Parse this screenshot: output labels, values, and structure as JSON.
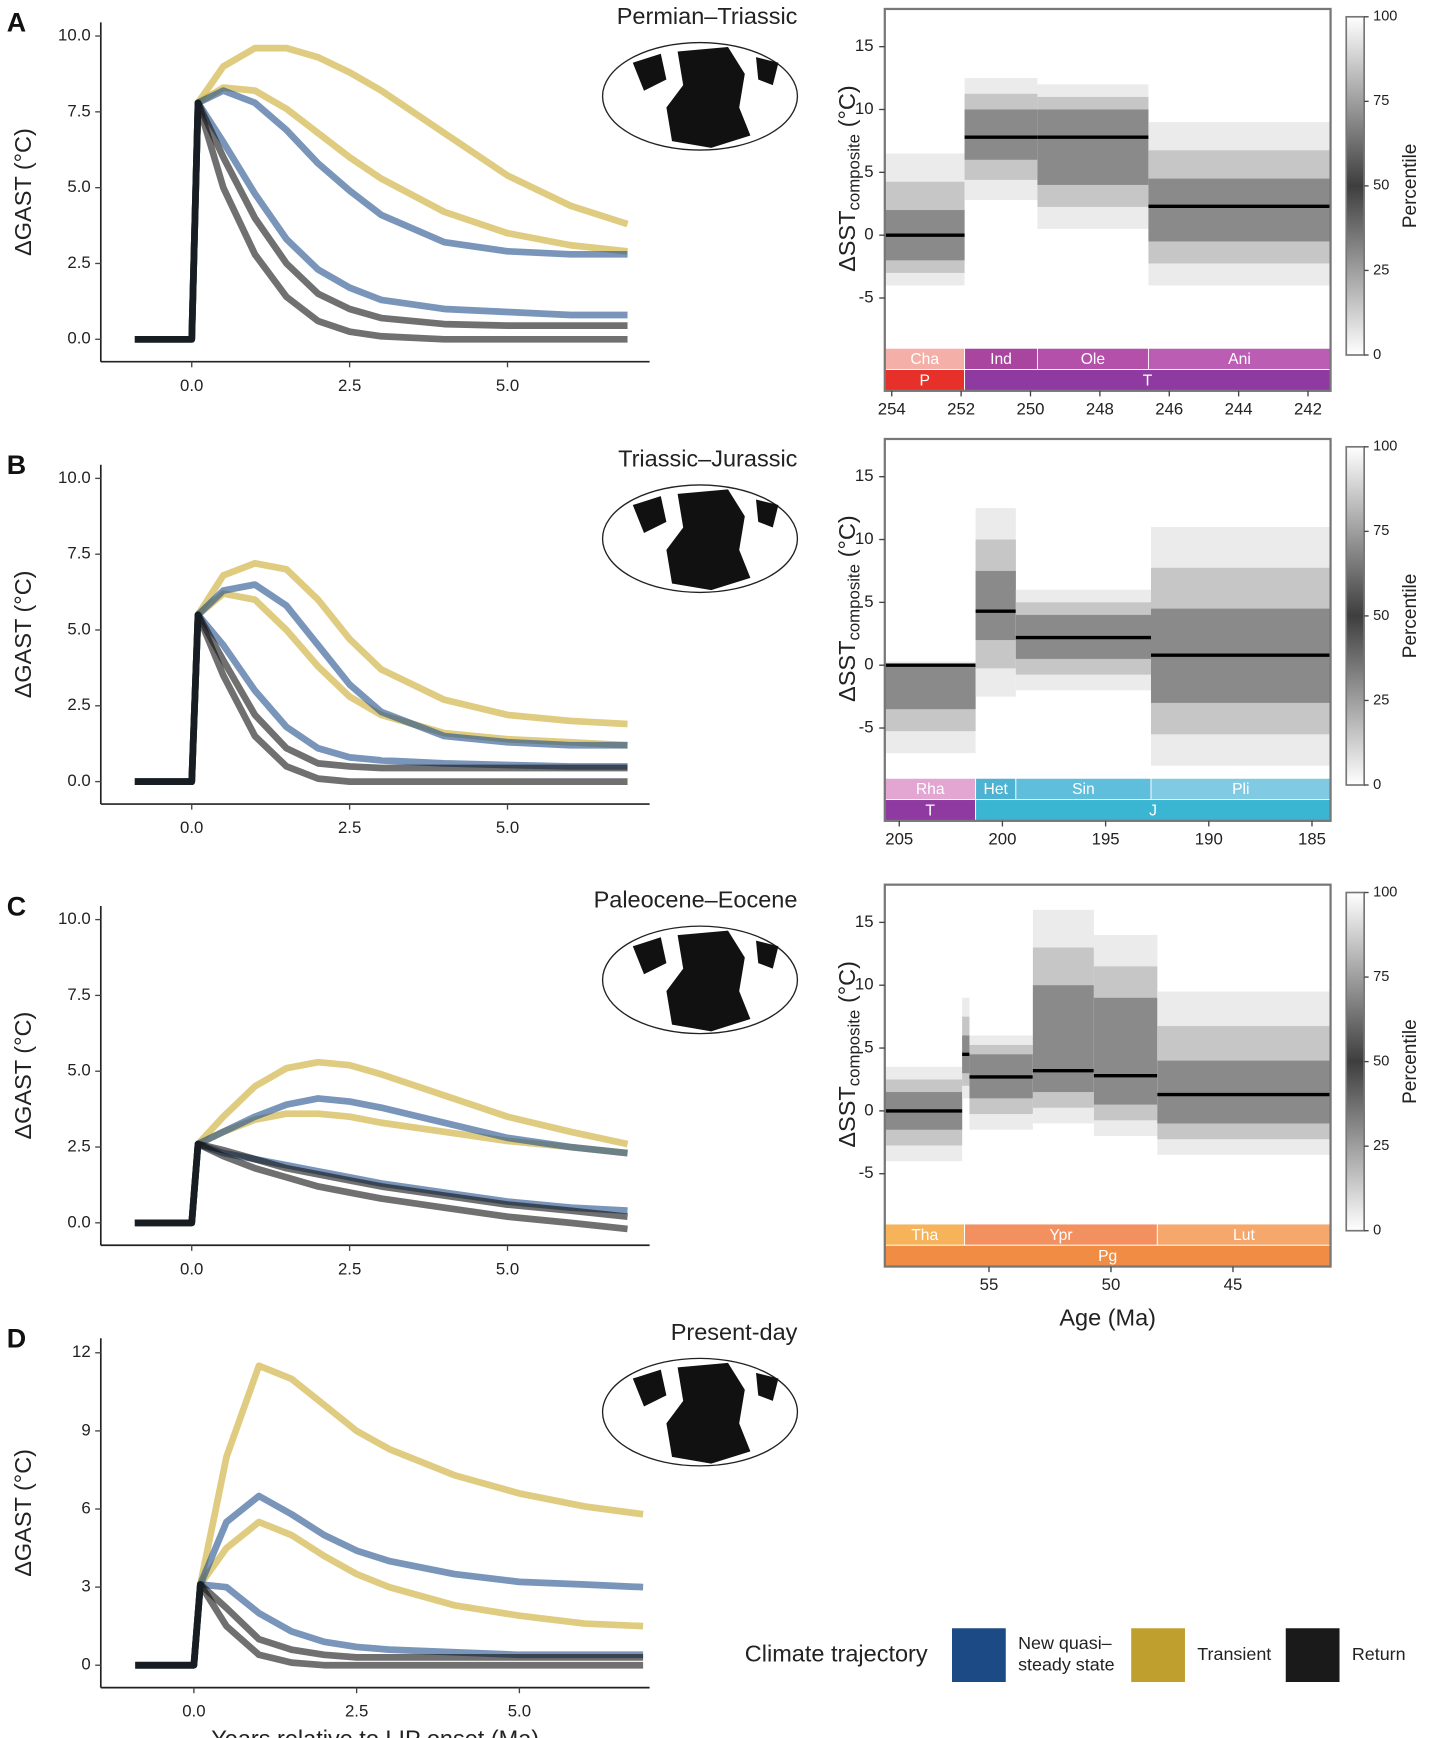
{
  "chart_data": [
    {
      "type": "line",
      "panel": "A",
      "title": "Permian–Triassic",
      "ylabel": "ΔGAST (°C)",
      "x": [
        -0.9,
        0,
        0.1,
        0.5,
        1,
        1.5,
        2,
        2.5,
        3,
        4,
        5,
        6,
        6.9
      ],
      "xlim": [
        -1.44,
        7.25
      ],
      "ylim": [
        -0.74,
        10.45
      ],
      "xticks": [
        {
          "value": 0,
          "label": "0.0"
        },
        2.5,
        {
          "value": 5,
          "label": "5.0"
        }
      ],
      "yticks": [
        {
          "value": 0,
          "label": "0.0"
        },
        2.5,
        {
          "value": 5,
          "label": "5.0"
        },
        7.5,
        {
          "value": 10,
          "label": "10.0"
        }
      ],
      "series": [
        {
          "color": "#c9aa2c",
          "values": [
            0,
            0,
            7.8,
            9,
            9.6,
            9.6,
            9.3,
            8.8,
            8.2,
            6.8,
            5.4,
            4.4,
            3.8
          ]
        },
        {
          "color": "#c9aa2c",
          "values": [
            0,
            0,
            7.8,
            8.3,
            8.2,
            7.6,
            6.8,
            6,
            5.3,
            4.2,
            3.5,
            3.1,
            2.9
          ]
        },
        {
          "color": "#1f4e8c",
          "values": [
            0,
            0,
            7.8,
            8.2,
            7.8,
            6.9,
            5.8,
            4.9,
            4.1,
            3.2,
            2.9,
            2.8,
            2.8
          ]
        },
        {
          "color": "#1f4e8c",
          "values": [
            0,
            0,
            7.8,
            6.5,
            4.8,
            3.3,
            2.3,
            1.7,
            1.3,
            1,
            0.9,
            0.8,
            0.8
          ]
        },
        {
          "color": "#111111",
          "values": [
            0,
            0,
            7.8,
            6,
            4,
            2.5,
            1.5,
            1,
            0.7,
            0.5,
            0.45,
            0.45,
            0.45
          ]
        },
        {
          "color": "#111111",
          "values": [
            0,
            0,
            7.8,
            5,
            2.8,
            1.4,
            0.6,
            0.25,
            0.1,
            0,
            0,
            0,
            0
          ]
        }
      ]
    },
    {
      "type": "percentile",
      "ylabel": "ΔSST",
      "ylabel_sub": "composite",
      "ylabel_unit": "(°C)",
      "xlim": [
        254.2,
        241.35
      ],
      "ylim": [
        -9,
        18
      ],
      "xticks": [
        254,
        252,
        250,
        248,
        246,
        244,
        242
      ],
      "yticks": [
        -5,
        0,
        5,
        10,
        15
      ],
      "starts": [
        254.2,
        251.9,
        249.8,
        246.6
      ],
      "ends": [
        251.9,
        249.8,
        246.6,
        241.35
      ],
      "values": [
        0,
        7.8,
        7.8,
        2.3
      ],
      "low": [
        -4,
        2.8,
        0.5,
        -4
      ],
      "q1": [
        -2,
        6,
        4,
        -0.5
      ],
      "q3": [
        2,
        10,
        10,
        4.5
      ],
      "high": [
        6.5,
        12.5,
        12,
        9
      ],
      "stages": {
        "labels": [
          "Cha",
          "Ind",
          "Ole",
          "Ani"
        ],
        "starts": [
          254.2,
          251.9,
          249.8,
          246.6
        ],
        "ends": [
          251.9,
          249.8,
          246.6,
          241.35
        ],
        "colors": [
          "#f4b0a8",
          "#a9449f",
          "#b450aa",
          "#bb5db3"
        ]
      },
      "periods": {
        "labels": [
          "P",
          "T"
        ],
        "starts": [
          254.2,
          251.9
        ],
        "ends": [
          251.9,
          241.35
        ],
        "colors": [
          "#e8302a",
          "#8f3aa0"
        ]
      },
      "colorbar": {
        "label": "Percentile",
        "ticks": [
          0,
          25,
          50,
          75,
          100
        ]
      }
    },
    {
      "type": "line",
      "panel": "B",
      "title": "Triassic–Jurassic",
      "ylabel": "ΔGAST (°C)",
      "x": [
        -0.9,
        0,
        0.1,
        0.5,
        1,
        1.5,
        2,
        2.5,
        3,
        4,
        5,
        6,
        6.9
      ],
      "xlim": [
        -1.44,
        7.25
      ],
      "ylim": [
        -0.74,
        10.45
      ],
      "xticks": [
        {
          "value": 0,
          "label": "0.0"
        },
        2.5,
        {
          "value": 5,
          "label": "5.0"
        }
      ],
      "yticks": [
        {
          "value": 0,
          "label": "0.0"
        },
        2.5,
        {
          "value": 5,
          "label": "5.0"
        },
        7.5,
        {
          "value": 10,
          "label": "10.0"
        }
      ],
      "series": [
        {
          "color": "#c9aa2c",
          "values": [
            0,
            0,
            5.5,
            6.8,
            7.2,
            7,
            6,
            4.7,
            3.7,
            2.7,
            2.2,
            2,
            1.9
          ]
        },
        {
          "color": "#c9aa2c",
          "values": [
            0,
            0,
            5.5,
            6.2,
            6,
            5,
            3.8,
            2.8,
            2.2,
            1.6,
            1.4,
            1.3,
            1.2
          ]
        },
        {
          "color": "#1f4e8c",
          "values": [
            0,
            0,
            5.5,
            6.3,
            6.5,
            5.8,
            4.5,
            3.2,
            2.3,
            1.5,
            1.3,
            1.2,
            1.2
          ]
        },
        {
          "color": "#1f4e8c",
          "values": [
            0,
            0,
            5.5,
            4.5,
            3,
            1.8,
            1.1,
            0.8,
            0.7,
            0.6,
            0.55,
            0.5,
            0.5
          ]
        },
        {
          "color": "#111111",
          "values": [
            0,
            0,
            5.5,
            4,
            2.2,
            1.1,
            0.6,
            0.5,
            0.45,
            0.45,
            0.45,
            0.45,
            0.45
          ]
        },
        {
          "color": "#111111",
          "values": [
            0,
            0,
            5.5,
            3.5,
            1.5,
            0.5,
            0.1,
            0,
            0,
            0,
            0,
            0,
            0
          ]
        }
      ]
    },
    {
      "type": "percentile",
      "ylabel": "ΔSST",
      "ylabel_sub": "composite",
      "ylabel_unit": "(°C)",
      "xlim": [
        205.7,
        184.1
      ],
      "ylim": [
        -9,
        18
      ],
      "xticks": [
        205,
        200,
        195,
        190,
        185
      ],
      "yticks": [
        -5,
        0,
        5,
        10,
        15
      ],
      "starts": [
        205.7,
        201.3,
        199.35,
        192.8
      ],
      "ends": [
        201.3,
        199.35,
        192.8,
        184.1
      ],
      "values": [
        0,
        4.3,
        2.2,
        0.8
      ],
      "low": [
        -7,
        -2.5,
        -2,
        -8
      ],
      "q1": [
        -3.5,
        2,
        0.5,
        -3
      ],
      "q3": [
        0,
        7.5,
        4,
        4.5
      ],
      "high": [
        0.3,
        12.5,
        6,
        11
      ],
      "stages": {
        "labels": [
          "Rha",
          "Het",
          "Sin",
          "Pli"
        ],
        "starts": [
          205.7,
          201.3,
          199.35,
          192.8
        ],
        "ends": [
          201.3,
          199.35,
          192.8,
          184.1
        ],
        "colors": [
          "#e3a5d2",
          "#4eb3d3",
          "#5fbedb",
          "#80cbe3"
        ]
      },
      "periods": {
        "labels": [
          "T",
          "J"
        ],
        "starts": [
          205.7,
          201.3
        ],
        "ends": [
          201.3,
          184.1
        ],
        "colors": [
          "#8f3aa0",
          "#3ab6d2"
        ]
      },
      "colorbar": {
        "label": "Percentile",
        "ticks": [
          0,
          25,
          50,
          75,
          100
        ]
      }
    },
    {
      "type": "line",
      "panel": "C",
      "title": "Paleocene–Eocene",
      "ylabel": "ΔGAST (°C)",
      "x": [
        -0.9,
        0,
        0.1,
        0.5,
        1,
        1.5,
        2,
        2.5,
        3,
        4,
        5,
        6,
        6.9
      ],
      "xlim": [
        -1.44,
        7.25
      ],
      "ylim": [
        -0.74,
        10.45
      ],
      "xticks": [
        {
          "value": 0,
          "label": "0.0"
        },
        2.5,
        {
          "value": 5,
          "label": "5.0"
        }
      ],
      "yticks": [
        {
          "value": 0,
          "label": "0.0"
        },
        2.5,
        {
          "value": 5,
          "label": "5.0"
        },
        7.5,
        {
          "value": 10,
          "label": "10.0"
        }
      ],
      "series": [
        {
          "color": "#c9aa2c",
          "values": [
            0,
            0,
            2.6,
            3.5,
            4.5,
            5.1,
            5.3,
            5.2,
            4.9,
            4.2,
            3.5,
            3,
            2.6
          ]
        },
        {
          "color": "#c9aa2c",
          "values": [
            0,
            0,
            2.6,
            3,
            3.4,
            3.6,
            3.6,
            3.5,
            3.3,
            3,
            2.7,
            2.5,
            2.3
          ]
        },
        {
          "color": "#1f4e8c",
          "values": [
            0,
            0,
            2.6,
            3,
            3.5,
            3.9,
            4.1,
            4,
            3.8,
            3.3,
            2.8,
            2.5,
            2.3
          ]
        },
        {
          "color": "#1f4e8c",
          "values": [
            0,
            0,
            2.6,
            2.3,
            2.1,
            1.9,
            1.7,
            1.5,
            1.3,
            1,
            0.7,
            0.5,
            0.4
          ]
        },
        {
          "color": "#111111",
          "values": [
            0,
            0,
            2.6,
            2.4,
            2.1,
            1.8,
            1.6,
            1.4,
            1.2,
            0.9,
            0.6,
            0.4,
            0.2
          ]
        },
        {
          "color": "#111111",
          "values": [
            0,
            0,
            2.6,
            2.2,
            1.8,
            1.5,
            1.2,
            1,
            0.8,
            0.5,
            0.2,
            0,
            -0.2
          ]
        }
      ]
    },
    {
      "type": "percentile",
      "ylabel": "ΔSST",
      "ylabel_sub": "composite",
      "ylabel_unit": "(°C)",
      "xlabel": "Age (Ma)",
      "xlim": [
        59.27,
        41.0
      ],
      "ylim": [
        -9,
        18
      ],
      "xticks": [
        55,
        50,
        45
      ],
      "yticks": [
        -5,
        0,
        5,
        10,
        15
      ],
      "starts": [
        59.27,
        56.1,
        55.8,
        53.2,
        50.7,
        48.1
      ],
      "ends": [
        56.1,
        55.8,
        53.2,
        50.7,
        48.1,
        41.0
      ],
      "values": [
        0,
        4.5,
        2.7,
        3.2,
        2.8,
        1.3
      ],
      "low": [
        -4,
        1,
        -1.5,
        -1,
        -2,
        -3.5
      ],
      "q1": [
        -1.5,
        3,
        1,
        1.5,
        0.5,
        -1
      ],
      "q3": [
        1.5,
        6,
        4.5,
        10,
        9,
        4
      ],
      "high": [
        3.5,
        9,
        6,
        16,
        14,
        9.5
      ],
      "stages": {
        "labels": [
          "Tha",
          "Ypr",
          "Lut"
        ],
        "starts": [
          59.27,
          56.0,
          48.1
        ],
        "ends": [
          56.0,
          48.1,
          41.0
        ],
        "colors": [
          "#f6b35a",
          "#f29060",
          "#f6a86c"
        ]
      },
      "periods": {
        "labels": [
          "Pg"
        ],
        "starts": [
          59.27
        ],
        "ends": [
          41.0
        ],
        "colors": [
          "#f08c44"
        ]
      },
      "colorbar": {
        "label": "Percentile",
        "ticks": [
          0,
          25,
          50,
          75,
          100
        ]
      }
    },
    {
      "type": "line",
      "panel": "D",
      "title": "Present-day",
      "ylabel": "ΔGAST (°C)",
      "xlabel": "Years relative to LIP onset (Ma)",
      "x": [
        -0.9,
        0,
        0.1,
        0.5,
        1,
        1.5,
        2,
        2.5,
        3,
        4,
        5,
        6,
        6.9
      ],
      "xlim": [
        -1.43,
        7.0
      ],
      "ylim": [
        -0.86,
        12.56
      ],
      "xticks": [
        {
          "value": 0,
          "label": "0.0"
        },
        2.5,
        {
          "value": 5,
          "label": "5.0"
        }
      ],
      "yticks": [
        0,
        3,
        6,
        9,
        12
      ],
      "series": [
        {
          "color": "#c9aa2c",
          "values": [
            0,
            0,
            3.1,
            8,
            11.5,
            11,
            10,
            9,
            8.3,
            7.3,
            6.6,
            6.1,
            5.8
          ]
        },
        {
          "color": "#c9aa2c",
          "values": [
            0,
            0,
            3.1,
            4.5,
            5.5,
            5,
            4.2,
            3.5,
            3,
            2.3,
            1.9,
            1.6,
            1.5
          ]
        },
        {
          "color": "#1f4e8c",
          "values": [
            0,
            0,
            3.1,
            5.5,
            6.5,
            5.8,
            5,
            4.4,
            4,
            3.5,
            3.2,
            3.1,
            3
          ]
        },
        {
          "color": "#1f4e8c",
          "values": [
            0,
            0,
            3.1,
            3,
            2,
            1.3,
            0.9,
            0.7,
            0.6,
            0.5,
            0.4,
            0.4,
            0.4
          ]
        },
        {
          "color": "#111111",
          "values": [
            0,
            0,
            3.1,
            2.2,
            1,
            0.6,
            0.4,
            0.3,
            0.3,
            0.3,
            0.3,
            0.3,
            0.3
          ]
        },
        {
          "color": "#111111",
          "values": [
            0,
            0,
            3.1,
            1.5,
            0.4,
            0.1,
            0,
            0,
            0,
            0,
            0,
            0,
            0
          ]
        }
      ]
    }
  ],
  "legend": {
    "title": "Climate trajectory",
    "items": [
      {
        "lines": [
          "New quasi–",
          "steady state"
        ],
        "color": "#1c4a85"
      },
      {
        "lines": [
          "Transient"
        ],
        "color": "#bf9f2e"
      },
      {
        "lines": [
          "Return"
        ],
        "color": "#1a1a1a"
      }
    ]
  }
}
